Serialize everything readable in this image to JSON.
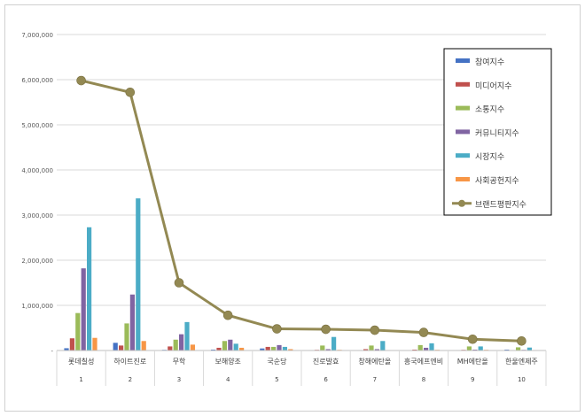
{
  "chart_data": {
    "type": "bar",
    "categories": [
      "롯데칠성",
      "하이트진로",
      "무학",
      "보해양조",
      "국순당",
      "진로발효",
      "창해에탄올",
      "흥국에프엔비",
      "MH에탄올",
      "한울엔제주"
    ],
    "ranks": [
      "1",
      "2",
      "3",
      "4",
      "5",
      "6",
      "7",
      "8",
      "9",
      "10"
    ],
    "yticks": [
      "-",
      "1,000,000",
      "2,000,000",
      "3,000,000",
      "4,000,000",
      "5,000,000",
      "6,000,000",
      "7,000,000"
    ],
    "ylim": [
      0,
      7000000
    ],
    "grid": true,
    "legend_position": "top-right",
    "series": [
      {
        "name": "참여지수",
        "type": "bar",
        "color": "#4472c4",
        "values": [
          50000,
          170000,
          15000,
          20000,
          45000,
          10000,
          10000,
          8000,
          10000,
          20000
        ]
      },
      {
        "name": "미디어지수",
        "type": "bar",
        "color": "#c0504d",
        "values": [
          270000,
          110000,
          90000,
          60000,
          80000,
          15000,
          30000,
          20000,
          15000,
          10000
        ]
      },
      {
        "name": "소통지수",
        "type": "bar",
        "color": "#9bbb59",
        "values": [
          830000,
          600000,
          240000,
          210000,
          80000,
          110000,
          110000,
          120000,
          90000,
          70000
        ]
      },
      {
        "name": "커뮤니티지수",
        "type": "bar",
        "color": "#8064a2",
        "values": [
          1820000,
          1240000,
          360000,
          240000,
          120000,
          30000,
          30000,
          60000,
          20000,
          15000
        ]
      },
      {
        "name": "시장지수",
        "type": "bar",
        "color": "#4bacc6",
        "values": [
          2730000,
          3370000,
          630000,
          150000,
          80000,
          300000,
          210000,
          160000,
          90000,
          65000
        ]
      },
      {
        "name": "사회공헌지수",
        "type": "bar",
        "color": "#f79646",
        "values": [
          280000,
          210000,
          130000,
          60000,
          30000,
          15000,
          10000,
          15000,
          15000,
          10000
        ]
      },
      {
        "name": "브랜드평판지수",
        "type": "line",
        "color": "#938953",
        "values": [
          5980000,
          5720000,
          1500000,
          780000,
          480000,
          470000,
          450000,
          400000,
          250000,
          210000
        ]
      }
    ]
  }
}
